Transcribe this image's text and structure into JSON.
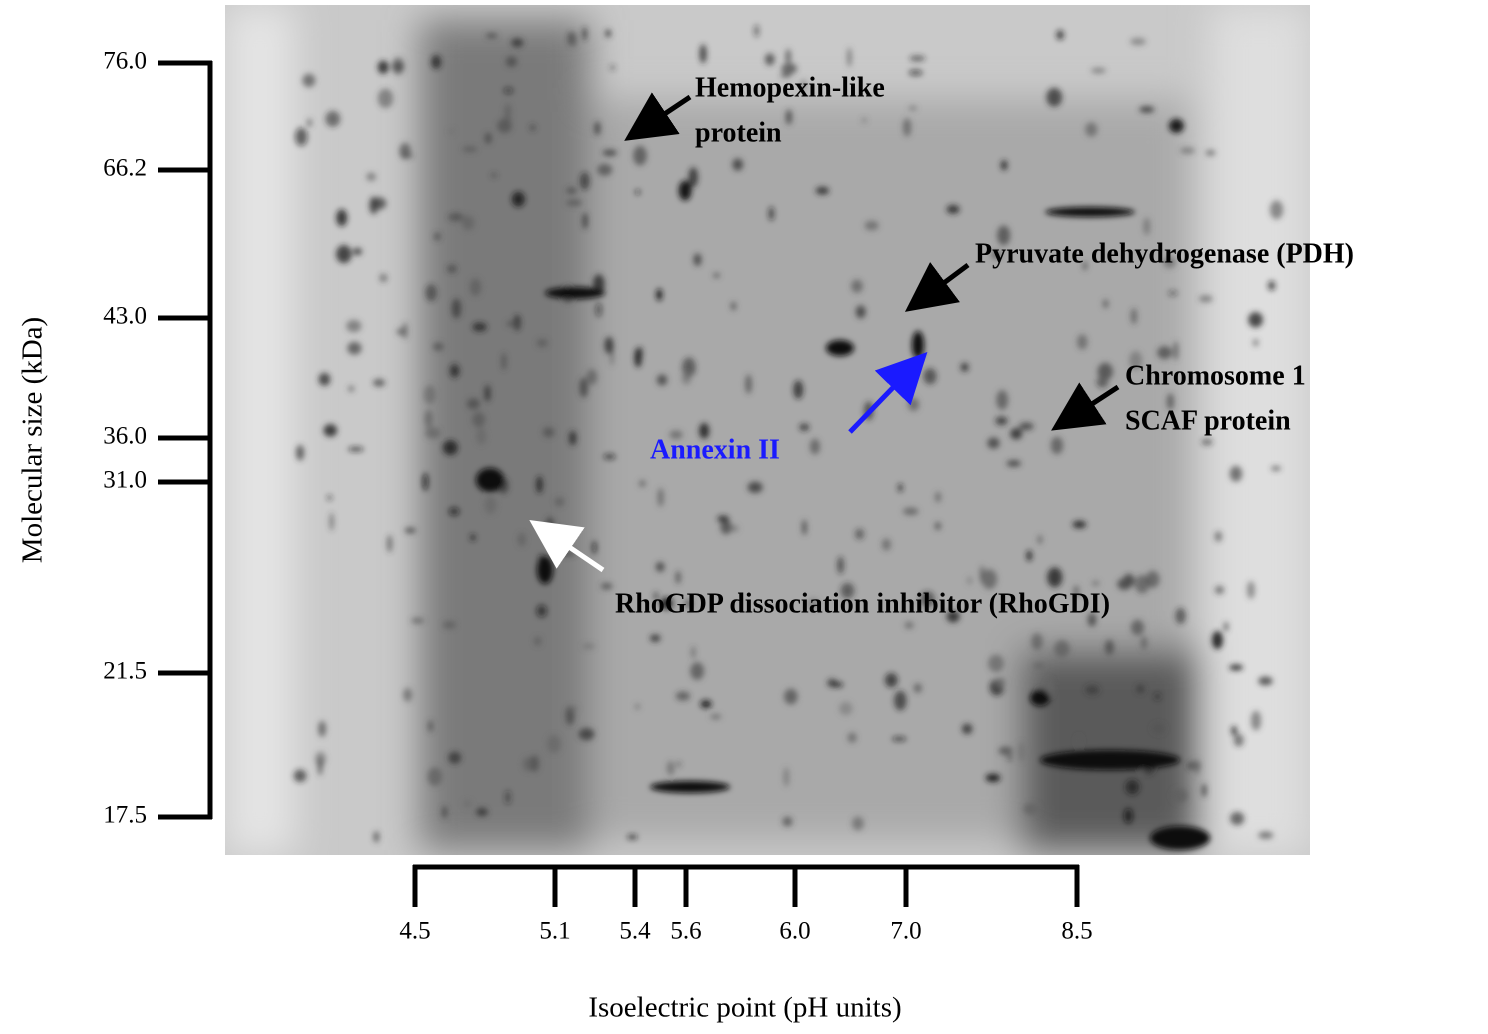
{
  "y_axis": {
    "title": "Molecular size (kDa)",
    "ticks": [
      "76.0",
      "66.2",
      "43.0",
      "36.0",
      "31.0",
      "21.5",
      "17.5"
    ]
  },
  "x_axis": {
    "title": "Isoelectric point (pH units)",
    "ticks": [
      "4.5",
      "5.1",
      "5.4",
      "5.6",
      "6.0",
      "7.0",
      "8.5"
    ]
  },
  "annotations": [
    {
      "lines": [
        "Hemopexin-like",
        "protein"
      ]
    },
    {
      "lines": [
        "Pyruvate dehydrogenase (PDH)"
      ]
    },
    {
      "lines": [
        "Chromosome 1",
        "SCAF protein"
      ]
    },
    {
      "lines": [
        "Annexin II"
      ]
    },
    {
      "lines": [
        "RhoGDP dissociation inhibitor (RhoGDI)"
      ]
    }
  ]
}
